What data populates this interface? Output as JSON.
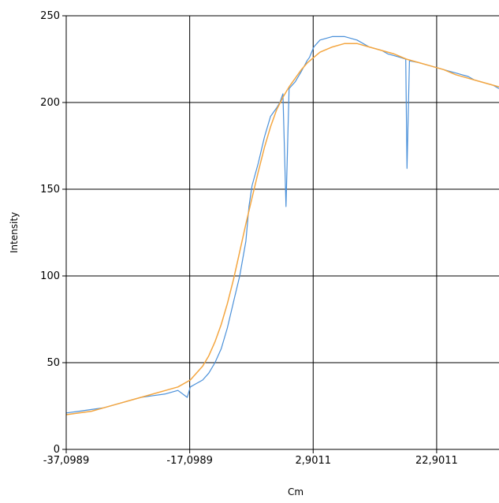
{
  "chart_data": {
    "type": "line",
    "xlabel": "Cm",
    "ylabel": "Intensity",
    "xlim": [
      -37.0989,
      33.0
    ],
    "ylim": [
      0,
      250
    ],
    "x_ticks": [
      "-37,0989",
      "-17,0989",
      "2,9011",
      "22,9011"
    ],
    "x_tick_values": [
      -37.0989,
      -17.0989,
      2.9011,
      22.9011
    ],
    "y_ticks": [
      "0",
      "50",
      "100",
      "150",
      "200",
      "250"
    ],
    "y_tick_values": [
      0,
      50,
      100,
      150,
      200,
      250
    ],
    "grid": true,
    "series": [
      {
        "kind": "measured",
        "color": "#4a90d9",
        "x": [
          -37.1,
          -35,
          -33,
          -31,
          -29,
          -27,
          -25,
          -23,
          -21,
          -19,
          -17.5,
          -17,
          -16,
          -15,
          -14,
          -13,
          -12,
          -11,
          -10,
          -9,
          -8.5,
          -8,
          -7.5,
          -7,
          -6,
          -5,
          -4,
          -3,
          -2.5,
          -2,
          -1.5,
          -1,
          0,
          1,
          1.6,
          1.9,
          2.3,
          3,
          4,
          6,
          8,
          10,
          12,
          14,
          15,
          16,
          17,
          17.9,
          18.1,
          18.5,
          20,
          22,
          24,
          25,
          26,
          27,
          28,
          29,
          30,
          31,
          32,
          33
        ],
        "y": [
          21,
          22,
          23,
          24,
          26,
          28,
          30,
          31,
          32,
          34,
          30,
          36,
          38,
          40,
          44,
          50,
          58,
          70,
          85,
          100,
          110,
          120,
          140,
          152,
          165,
          180,
          192,
          197,
          200,
          205,
          140,
          208,
          212,
          218,
          222,
          224,
          226,
          232,
          236,
          238,
          238,
          236,
          232,
          230,
          228,
          227,
          226,
          225,
          162,
          224,
          223,
          221,
          219,
          218,
          217,
          216,
          215,
          213,
          212,
          211,
          210,
          208
        ]
      },
      {
        "kind": "fit",
        "color": "#f4a640",
        "x": [
          -37.1,
          -35,
          -33,
          -31,
          -29,
          -27,
          -25,
          -23,
          -21,
          -19,
          -17,
          -16,
          -15,
          -14,
          -13,
          -12,
          -11,
          -10,
          -9,
          -8,
          -7,
          -6,
          -5,
          -4,
          -3,
          -2,
          -1,
          0,
          1,
          2,
          3,
          4,
          6,
          8,
          10,
          12,
          14,
          16,
          18,
          20,
          22,
          24,
          26,
          28,
          30,
          32,
          33
        ],
        "y": [
          20,
          21,
          22,
          24,
          26,
          28,
          30,
          32,
          34,
          36,
          40,
          44,
          48,
          54,
          62,
          72,
          84,
          98,
          114,
          130,
          145,
          160,
          174,
          186,
          196,
          203,
          209,
          214,
          219,
          223,
          226,
          229,
          232,
          234,
          234,
          232,
          230,
          228,
          225,
          223,
          221,
          219,
          216,
          214,
          212,
          210,
          209
        ]
      }
    ]
  }
}
